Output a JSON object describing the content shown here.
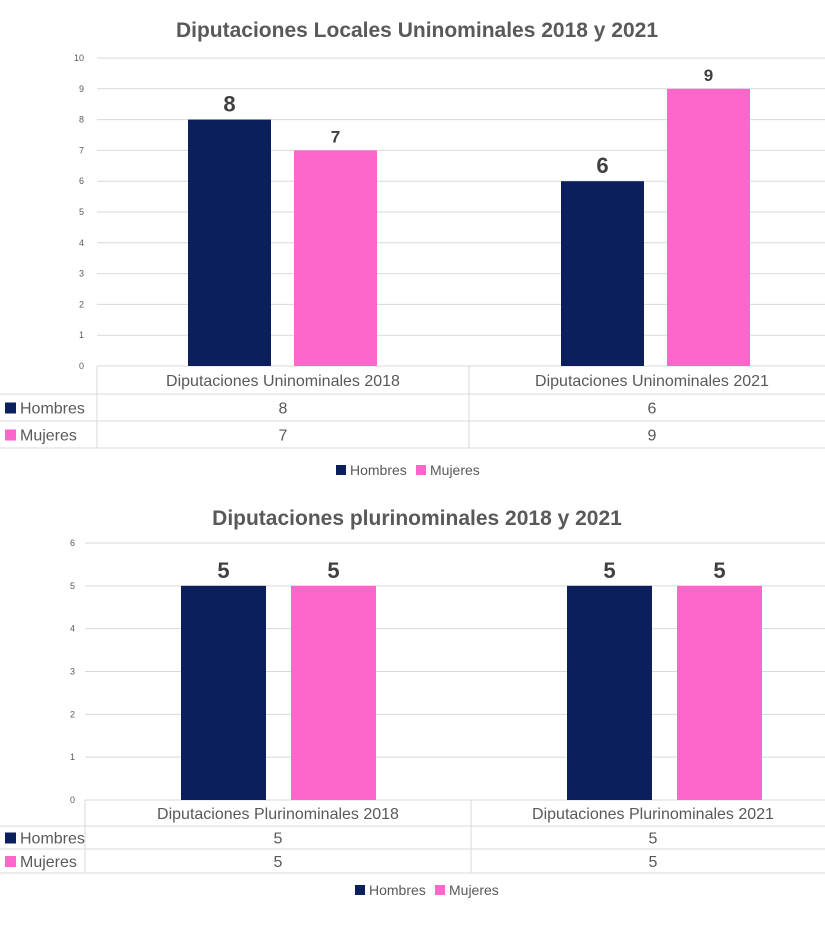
{
  "colors": {
    "Hombres": "#0a1f5c",
    "Mujeres": "#ff66cc",
    "grid": "#d9d9d9"
  },
  "chart_data": [
    {
      "type": "bar",
      "title": "Diputaciones Locales Uninominales 2018 y 2021",
      "categories": [
        "Diputaciones Uninominales 2018",
        "Diputaciones Uninominales 2021"
      ],
      "series": [
        {
          "name": "Hombres",
          "values": [
            8,
            6
          ]
        },
        {
          "name": "Mujeres",
          "values": [
            7,
            9
          ]
        }
      ],
      "ylim": [
        0,
        10
      ],
      "yticks": [
        0,
        1,
        2,
        3,
        4,
        5,
        6,
        7,
        8,
        9,
        10
      ],
      "grid": true,
      "data_table": true,
      "legend": "bottom"
    },
    {
      "type": "bar",
      "title": "Diputaciones plurinominales 2018 y 2021",
      "categories": [
        "Diputaciones Plurinominales 2018",
        "Diputaciones Plurinominales 2021"
      ],
      "series": [
        {
          "name": "Hombres",
          "values": [
            5,
            5
          ]
        },
        {
          "name": "Mujeres",
          "values": [
            5,
            5
          ]
        }
      ],
      "ylim": [
        0,
        6
      ],
      "yticks": [
        0,
        1,
        2,
        3,
        4,
        5,
        6
      ],
      "grid": true,
      "data_table": true,
      "legend": "bottom"
    }
  ]
}
